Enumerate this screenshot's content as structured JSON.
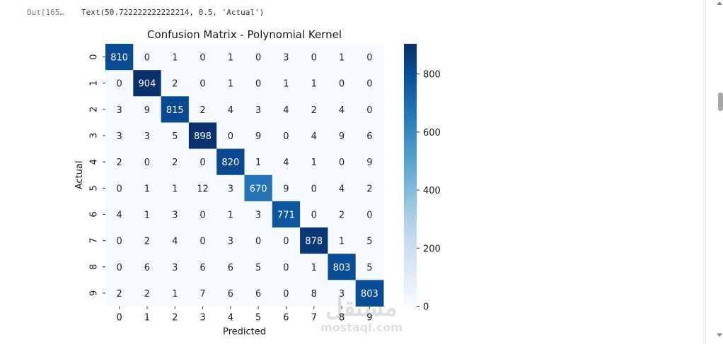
{
  "notebook": {
    "out_prompt": "Out[165…",
    "out_text": "Text(50.722222222222214, 0.5, 'Actual')"
  },
  "watermark": {
    "text": "mostaql.com",
    "glyph": "مستقل"
  },
  "chart_data": {
    "type": "heatmap",
    "title": "Confusion Matrix - Polynomial Kernel",
    "xlabel": "Predicted",
    "ylabel": "Actual",
    "x_categories": [
      "0",
      "1",
      "2",
      "3",
      "4",
      "5",
      "6",
      "7",
      "8",
      "9"
    ],
    "y_categories": [
      "0",
      "1",
      "2",
      "3",
      "4",
      "5",
      "6",
      "7",
      "8",
      "9"
    ],
    "matrix": [
      [
        810,
        0,
        1,
        0,
        1,
        0,
        3,
        0,
        1,
        0
      ],
      [
        0,
        904,
        2,
        0,
        1,
        0,
        1,
        1,
        0,
        0
      ],
      [
        3,
        9,
        815,
        2,
        4,
        3,
        4,
        2,
        4,
        0
      ],
      [
        3,
        3,
        5,
        898,
        0,
        9,
        0,
        4,
        9,
        6
      ],
      [
        2,
        0,
        2,
        0,
        820,
        1,
        4,
        1,
        0,
        9
      ],
      [
        0,
        1,
        1,
        12,
        3,
        670,
        9,
        0,
        4,
        2
      ],
      [
        4,
        1,
        3,
        0,
        1,
        3,
        771,
        0,
        2,
        0
      ],
      [
        0,
        2,
        4,
        0,
        3,
        0,
        0,
        878,
        1,
        5
      ],
      [
        0,
        6,
        3,
        6,
        6,
        5,
        0,
        1,
        803,
        5
      ],
      [
        2,
        2,
        1,
        7,
        6,
        6,
        0,
        8,
        3,
        803
      ]
    ],
    "colorbar": {
      "min": 0,
      "max": 904,
      "ticks": [
        0,
        200,
        400,
        600,
        800
      ]
    },
    "colormap": [
      "#f7fbff",
      "#deebf7",
      "#c6dbef",
      "#9ecae1",
      "#6baed6",
      "#4292c6",
      "#2171b5",
      "#08519c",
      "#08306b"
    ],
    "annotation_colors": {
      "dark_text": "#262626",
      "light_text": "#ffffff"
    }
  }
}
